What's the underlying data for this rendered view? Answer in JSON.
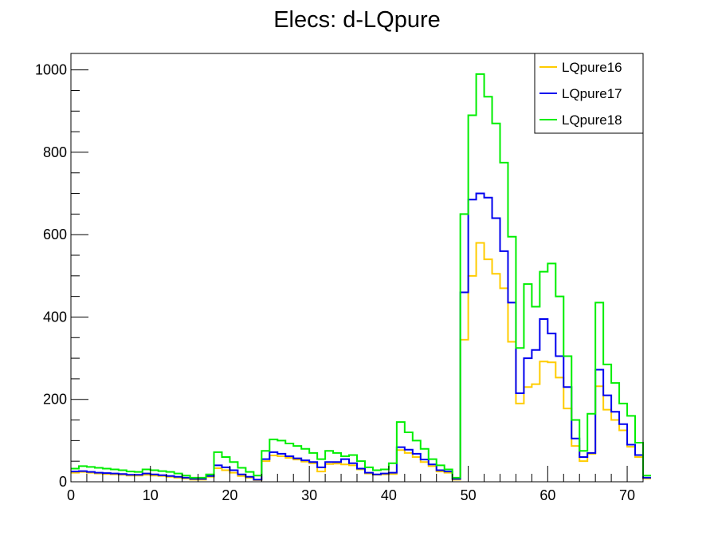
{
  "chart_data": {
    "type": "line",
    "style": "step-histogram",
    "title": "Elecs: d-LQpure",
    "xlabel": "",
    "ylabel": "",
    "xlim": [
      0,
      72
    ],
    "ylim": [
      0,
      1040
    ],
    "x_ticks": [
      0,
      10,
      20,
      30,
      40,
      50,
      60,
      70
    ],
    "y_ticks": [
      0,
      200,
      400,
      600,
      800,
      1000
    ],
    "bin_edges_start": 0,
    "bin_width": 1,
    "grid": false,
    "legend_position": "top-right",
    "series": [
      {
        "name": "LQpure16",
        "color": "#ffcc00",
        "values": [
          22,
          24,
          22,
          20,
          19,
          18,
          17,
          15,
          15,
          17,
          15,
          14,
          12,
          10,
          8,
          5,
          5,
          12,
          33,
          28,
          22,
          14,
          10,
          4,
          50,
          64,
          62,
          58,
          54,
          49,
          45,
          25,
          43,
          44,
          42,
          40,
          30,
          20,
          17,
          18,
          19,
          77,
          70,
          60,
          48,
          38,
          25,
          22,
          5,
          345,
          500,
          580,
          540,
          505,
          470,
          340,
          190,
          230,
          237,
          292,
          290,
          253,
          178,
          87,
          50,
          68,
          232,
          175,
          150,
          125,
          85,
          60,
          8
        ]
      },
      {
        "name": "LQpure17",
        "color": "#0000ee",
        "values": [
          25,
          26,
          24,
          22,
          21,
          20,
          19,
          17,
          17,
          20,
          18,
          16,
          14,
          12,
          10,
          7,
          7,
          14,
          40,
          35,
          28,
          18,
          12,
          5,
          55,
          72,
          68,
          62,
          57,
          52,
          48,
          35,
          48,
          48,
          55,
          45,
          32,
          22,
          18,
          20,
          22,
          84,
          78,
          68,
          54,
          42,
          28,
          25,
          7,
          460,
          685,
          700,
          690,
          640,
          560,
          435,
          215,
          300,
          320,
          395,
          360,
          305,
          230,
          105,
          60,
          70,
          272,
          210,
          170,
          140,
          90,
          65,
          10
        ]
      },
      {
        "name": "LQpure18",
        "color": "#00ee00",
        "values": [
          32,
          38,
          36,
          34,
          32,
          30,
          28,
          25,
          24,
          30,
          28,
          26,
          24,
          20,
          15,
          10,
          10,
          18,
          72,
          60,
          48,
          34,
          24,
          15,
          75,
          103,
          100,
          93,
          87,
          80,
          70,
          55,
          75,
          70,
          62,
          65,
          50,
          35,
          28,
          30,
          45,
          145,
          120,
          100,
          80,
          55,
          40,
          30,
          10,
          650,
          890,
          990,
          935,
          870,
          775,
          595,
          325,
          480,
          425,
          510,
          530,
          450,
          305,
          150,
          75,
          165,
          435,
          285,
          240,
          190,
          160,
          95,
          15
        ]
      }
    ]
  }
}
